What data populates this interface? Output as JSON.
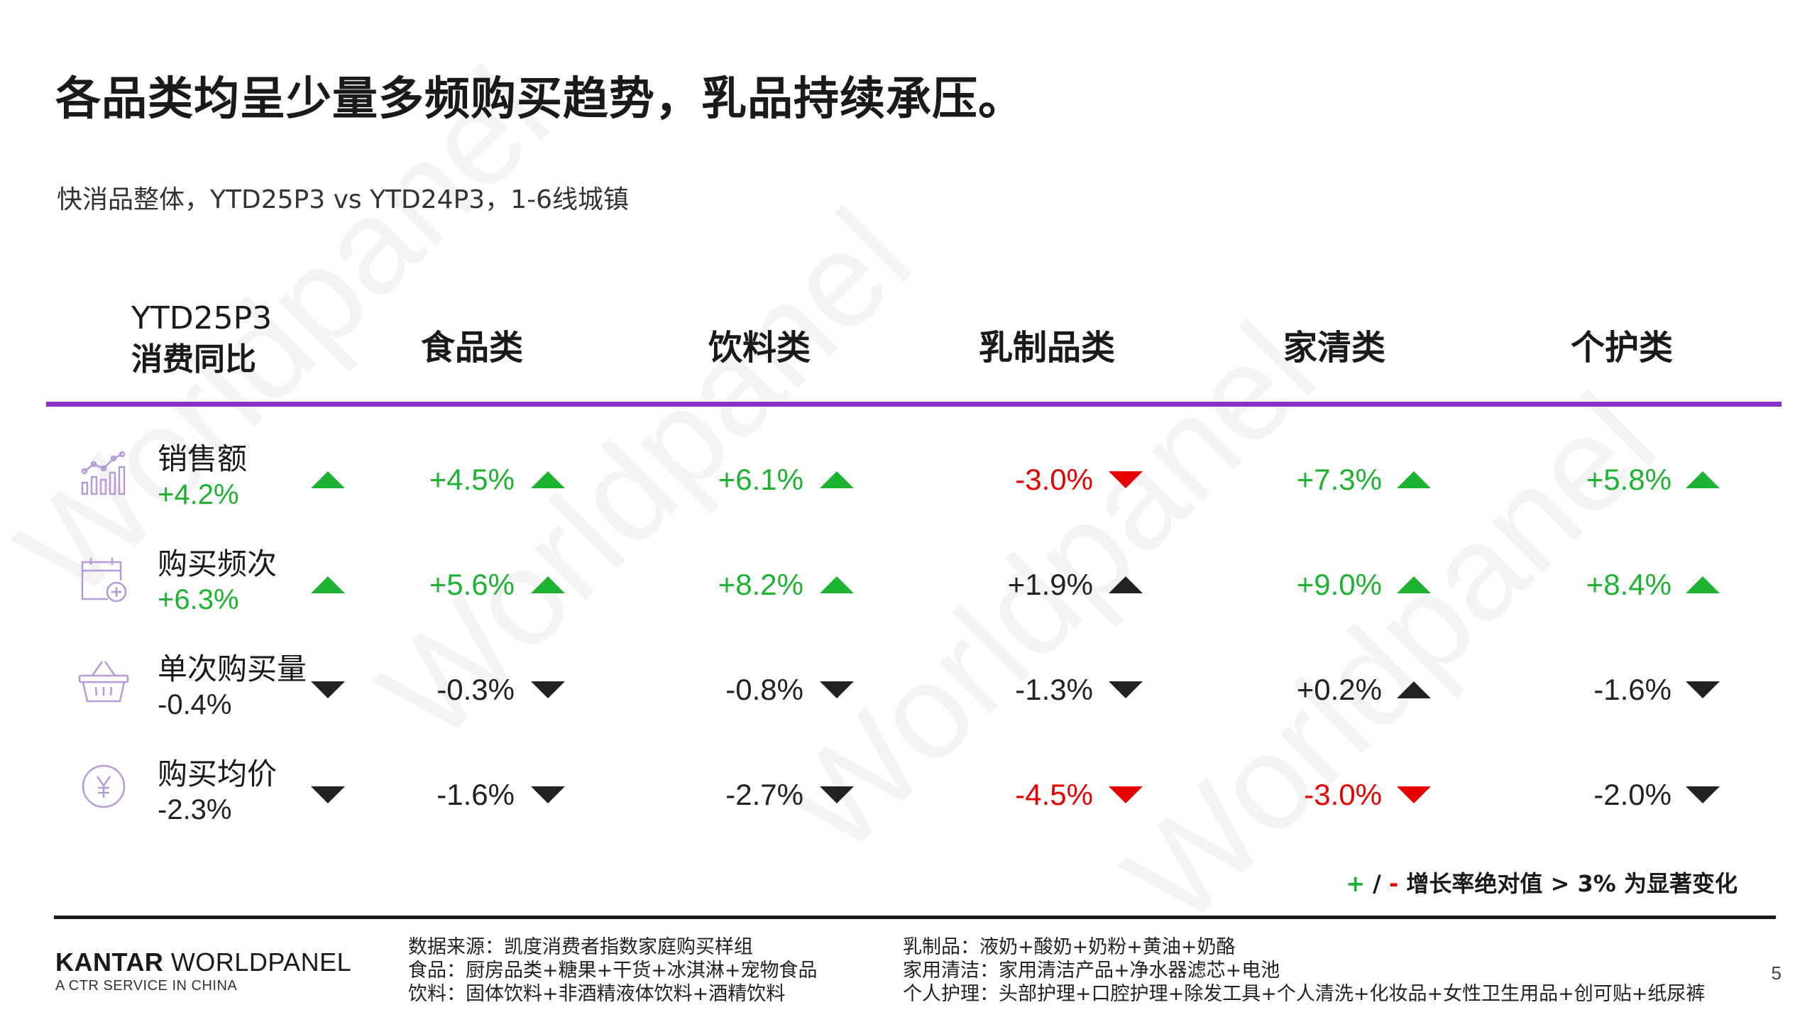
{
  "title": "各品类均呈少量多频购买趋势，乳品持续承压。",
  "subtitle": "快消品整体，YTD25P3 vs YTD24P3，1-6线城镇",
  "watermark": "Worldpanel",
  "table": {
    "corner_line1": "YTD25P3",
    "corner_line2": "消费同比",
    "columns": [
      "食品类",
      "饮料类",
      "乳制品类",
      "家清类",
      "个护类"
    ],
    "rows": [
      {
        "label": "销售额",
        "value": "+4.2%",
        "value_color": "#1db231",
        "trend": "up",
        "trend_color": "#1db231",
        "icon": "bar-chart-icon",
        "cells": [
          {
            "text": "+4.5%",
            "color": "#1db231",
            "trend": "up",
            "trend_color": "#1db231"
          },
          {
            "text": "+6.1%",
            "color": "#1db231",
            "trend": "up",
            "trend_color": "#1db231"
          },
          {
            "text": "-3.0%",
            "color": "#e60000",
            "trend": "down",
            "trend_color": "#e60000"
          },
          {
            "text": "+7.3%",
            "color": "#1db231",
            "trend": "up",
            "trend_color": "#1db231"
          },
          {
            "text": "+5.8%",
            "color": "#1db231",
            "trend": "up",
            "trend_color": "#1db231"
          }
        ]
      },
      {
        "label": "购买频次",
        "value": "+6.3%",
        "value_color": "#1db231",
        "trend": "up",
        "trend_color": "#1db231",
        "icon": "calendar-add-icon",
        "cells": [
          {
            "text": "+5.6%",
            "color": "#1db231",
            "trend": "up",
            "trend_color": "#1db231"
          },
          {
            "text": "+8.2%",
            "color": "#1db231",
            "trend": "up",
            "trend_color": "#1db231"
          },
          {
            "text": "+1.9%",
            "color": "#222222",
            "trend": "up",
            "trend_color": "#222222"
          },
          {
            "text": "+9.0%",
            "color": "#1db231",
            "trend": "up",
            "trend_color": "#1db231"
          },
          {
            "text": "+8.4%",
            "color": "#1db231",
            "trend": "up",
            "trend_color": "#1db231"
          }
        ]
      },
      {
        "label": "单次购买量",
        "value": "-0.4%",
        "value_color": "#222222",
        "trend": "down",
        "trend_color": "#222222",
        "icon": "basket-icon",
        "cells": [
          {
            "text": "-0.3%",
            "color": "#222222",
            "trend": "down",
            "trend_color": "#222222"
          },
          {
            "text": "-0.8%",
            "color": "#222222",
            "trend": "down",
            "trend_color": "#222222"
          },
          {
            "text": "-1.3%",
            "color": "#222222",
            "trend": "down",
            "trend_color": "#222222"
          },
          {
            "text": "+0.2%",
            "color": "#222222",
            "trend": "up",
            "trend_color": "#222222"
          },
          {
            "text": "-1.6%",
            "color": "#222222",
            "trend": "down",
            "trend_color": "#222222"
          }
        ]
      },
      {
        "label": "购买均价",
        "value": "-2.3%",
        "value_color": "#222222",
        "trend": "down",
        "trend_color": "#222222",
        "icon": "yuan-coin-icon",
        "cells": [
          {
            "text": "-1.6%",
            "color": "#222222",
            "trend": "down",
            "trend_color": "#222222"
          },
          {
            "text": "-2.7%",
            "color": "#222222",
            "trend": "down",
            "trend_color": "#222222"
          },
          {
            "text": "-4.5%",
            "color": "#e60000",
            "trend": "down",
            "trend_color": "#e60000"
          },
          {
            "text": "-3.0%",
            "color": "#e60000",
            "trend": "down",
            "trend_color": "#e60000"
          },
          {
            "text": "-2.0%",
            "color": "#222222",
            "trend": "down",
            "trend_color": "#222222"
          }
        ]
      }
    ]
  },
  "note": {
    "plus": "+",
    "slash": " / ",
    "minus": "-",
    "text": " 增长率绝对值 > 3% 为显著变化"
  },
  "logo": {
    "bold": "KANTAR",
    "rest": " WORLDPANEL",
    "sub": "A CTR SERVICE IN CHINA"
  },
  "footnotes_left": [
    "数据来源：凯度消费者指数家庭购买样组",
    "食品：厨房品类+糖果+干货+冰淇淋+宠物食品",
    "饮料：固体饮料+非酒精液体饮料+酒精饮料"
  ],
  "footnotes_right": [
    "乳制品：液奶+酸奶+奶粉+黄油+奶酪",
    "家用清洁：家用清洁产品+净水器滤芯+电池",
    "个人护理：头部护理+口腔护理+除发工具+个人清洗+化妆品+女性卫生用品+创可贴+纸尿裤"
  ],
  "page_number": "5",
  "colors": {
    "accent_purple": "#8b2fc9",
    "icon_lilac": "#b49ad8",
    "positive": "#1db231",
    "negative": "#e60000"
  }
}
